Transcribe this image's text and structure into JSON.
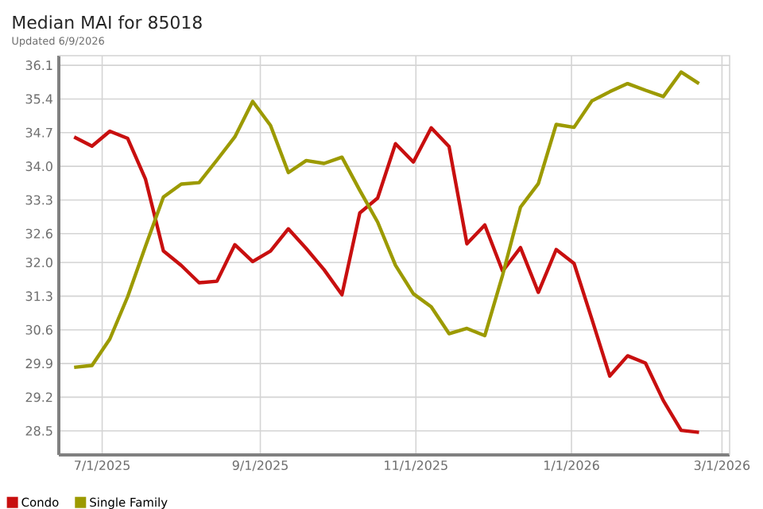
{
  "chart_data": {
    "type": "line",
    "title": "Median MAI for 85018",
    "subtitle": "Updated 6/9/2026",
    "x": [
      "2025-06-20",
      "2025-06-27",
      "2025-07-04",
      "2025-07-11",
      "2025-07-18",
      "2025-07-25",
      "2025-08-01",
      "2025-08-08",
      "2025-08-15",
      "2025-08-22",
      "2025-08-29",
      "2025-09-05",
      "2025-09-12",
      "2025-09-19",
      "2025-09-26",
      "2025-10-03",
      "2025-10-10",
      "2025-10-17",
      "2025-10-24",
      "2025-10-31",
      "2025-11-07",
      "2025-11-14",
      "2025-11-21",
      "2025-11-28",
      "2025-12-05",
      "2025-12-12",
      "2025-12-19",
      "2025-12-26",
      "2026-01-02",
      "2026-01-09",
      "2026-01-16",
      "2026-01-23",
      "2026-01-30",
      "2026-02-06",
      "2026-02-13",
      "2026-02-20"
    ],
    "series": [
      {
        "name": "Condo",
        "color": "#c80f0f",
        "values": [
          34.61,
          34.42,
          34.73,
          34.58,
          33.73,
          32.24,
          31.94,
          31.58,
          31.61,
          32.37,
          32.02,
          32.24,
          32.7,
          32.29,
          31.85,
          31.33,
          33.03,
          33.34,
          34.47,
          34.09,
          34.8,
          34.41,
          32.39,
          32.78,
          31.82,
          32.31,
          31.38,
          32.27,
          31.98,
          30.82,
          29.64,
          30.06,
          29.91,
          29.13,
          28.51,
          28.47
        ]
      },
      {
        "name": "Single Family",
        "color": "#9c9a00",
        "values": [
          29.82,
          29.86,
          30.41,
          31.29,
          32.34,
          33.36,
          33.63,
          33.66,
          34.13,
          34.61,
          35.35,
          34.85,
          33.87,
          34.12,
          34.06,
          34.19,
          33.5,
          32.84,
          31.94,
          31.35,
          31.08,
          30.52,
          30.63,
          30.48,
          31.74,
          33.15,
          33.64,
          34.87,
          34.81,
          35.36,
          35.55,
          35.72,
          35.58,
          35.45,
          35.96,
          35.72
        ]
      }
    ],
    "xlim": [
      "2025-06-14",
      "2026-03-04"
    ],
    "xticks": [
      {
        "value": "2025-07-01",
        "label": "7/1/2025"
      },
      {
        "value": "2025-09-01",
        "label": "9/1/2025"
      },
      {
        "value": "2025-11-01",
        "label": "11/1/2025"
      },
      {
        "value": "2026-01-01",
        "label": "1/1/2026"
      },
      {
        "value": "2026-03-01",
        "label": "3/1/2026"
      }
    ],
    "ylim": [
      28.0,
      36.3
    ],
    "yticks": [
      28.5,
      29.2,
      29.9,
      30.6,
      31.3,
      {
        "value": 32.0,
        "label": "32.0"
      },
      32.6,
      33.3,
      {
        "value": 34.0,
        "label": "34.0"
      },
      34.7,
      35.4,
      36.1
    ],
    "grid": true,
    "legend": "bottom left",
    "line_style": "solid"
  }
}
